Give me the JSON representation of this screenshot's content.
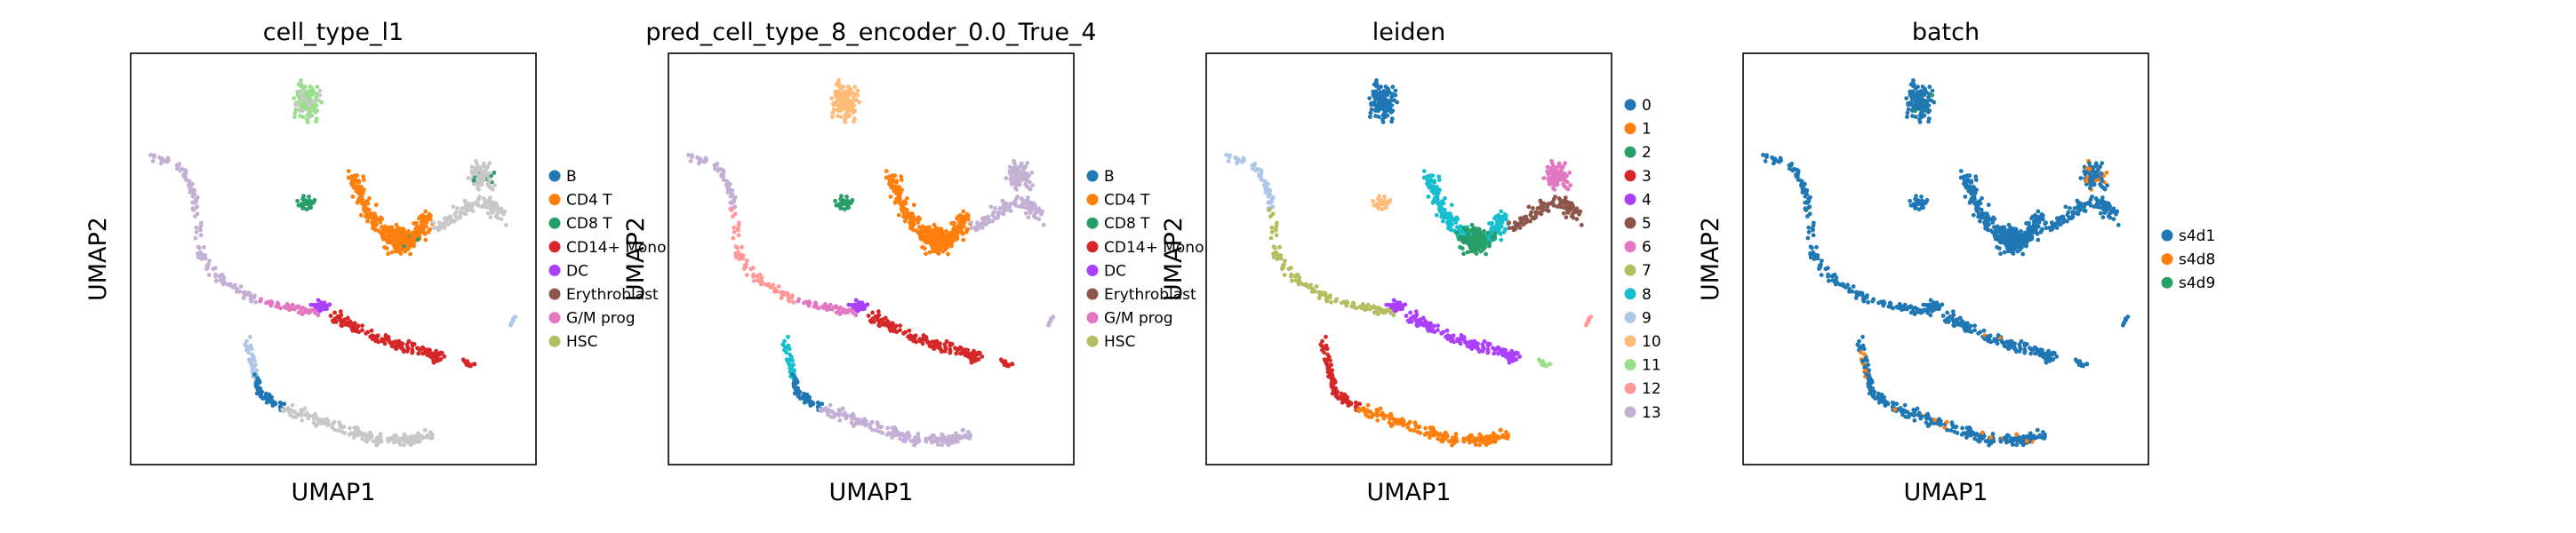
{
  "chart_data": [
    {
      "type": "scatter",
      "title": "cell_type_l1",
      "xlabel": "UMAP1",
      "ylabel": "UMAP2",
      "legend_position": "right",
      "legend": [
        {
          "label": "B",
          "color": "#1f77b4"
        },
        {
          "label": "CD4 T",
          "color": "#ff7f0e"
        },
        {
          "label": "CD8 T",
          "color": "#279e68"
        },
        {
          "label": "CD14+ Mono",
          "color": "#d62728"
        },
        {
          "label": "DC",
          "color": "#aa40fc"
        },
        {
          "label": "Erythroblast",
          "color": "#8c564b"
        },
        {
          "label": "G/M prog",
          "color": "#e377c2"
        },
        {
          "label": "HSC",
          "color": "#b5bd61"
        }
      ]
    },
    {
      "type": "scatter",
      "title": "pred_cell_type_8_encoder_0.0_True_4",
      "xlabel": "UMAP1",
      "ylabel": "UMAP2",
      "legend_position": "right",
      "legend": [
        {
          "label": "B",
          "color": "#1f77b4"
        },
        {
          "label": "CD4 T",
          "color": "#ff7f0e"
        },
        {
          "label": "CD8 T",
          "color": "#279e68"
        },
        {
          "label": "CD14+ Mono",
          "color": "#d62728"
        },
        {
          "label": "DC",
          "color": "#aa40fc"
        },
        {
          "label": "Erythroblast",
          "color": "#8c564b"
        },
        {
          "label": "G/M prog",
          "color": "#e377c2"
        },
        {
          "label": "HSC",
          "color": "#b5bd61"
        }
      ]
    },
    {
      "type": "scatter",
      "title": "leiden",
      "xlabel": "UMAP1",
      "ylabel": "UMAP2",
      "legend_position": "right",
      "legend": [
        {
          "label": "0",
          "color": "#1f77b4"
        },
        {
          "label": "1",
          "color": "#ff7f0e"
        },
        {
          "label": "2",
          "color": "#279e68"
        },
        {
          "label": "3",
          "color": "#d62728"
        },
        {
          "label": "4",
          "color": "#aa40fc"
        },
        {
          "label": "5",
          "color": "#8c564b"
        },
        {
          "label": "6",
          "color": "#e377c2"
        },
        {
          "label": "7",
          "color": "#b5bd61"
        },
        {
          "label": "8",
          "color": "#17becf"
        },
        {
          "label": "9",
          "color": "#aec7e8"
        },
        {
          "label": "10",
          "color": "#ffbb78"
        },
        {
          "label": "11",
          "color": "#98df8a"
        },
        {
          "label": "12",
          "color": "#ff9896"
        },
        {
          "label": "13",
          "color": "#c5b0d5"
        }
      ]
    },
    {
      "type": "scatter",
      "title": "batch",
      "xlabel": "UMAP1",
      "ylabel": "UMAP2",
      "legend_position": "right",
      "legend": [
        {
          "label": "s4d1",
          "color": "#1f77b4"
        },
        {
          "label": "s4d8",
          "color": "#ff7f0e"
        },
        {
          "label": "s4d9",
          "color": "#279e68"
        }
      ]
    }
  ]
}
